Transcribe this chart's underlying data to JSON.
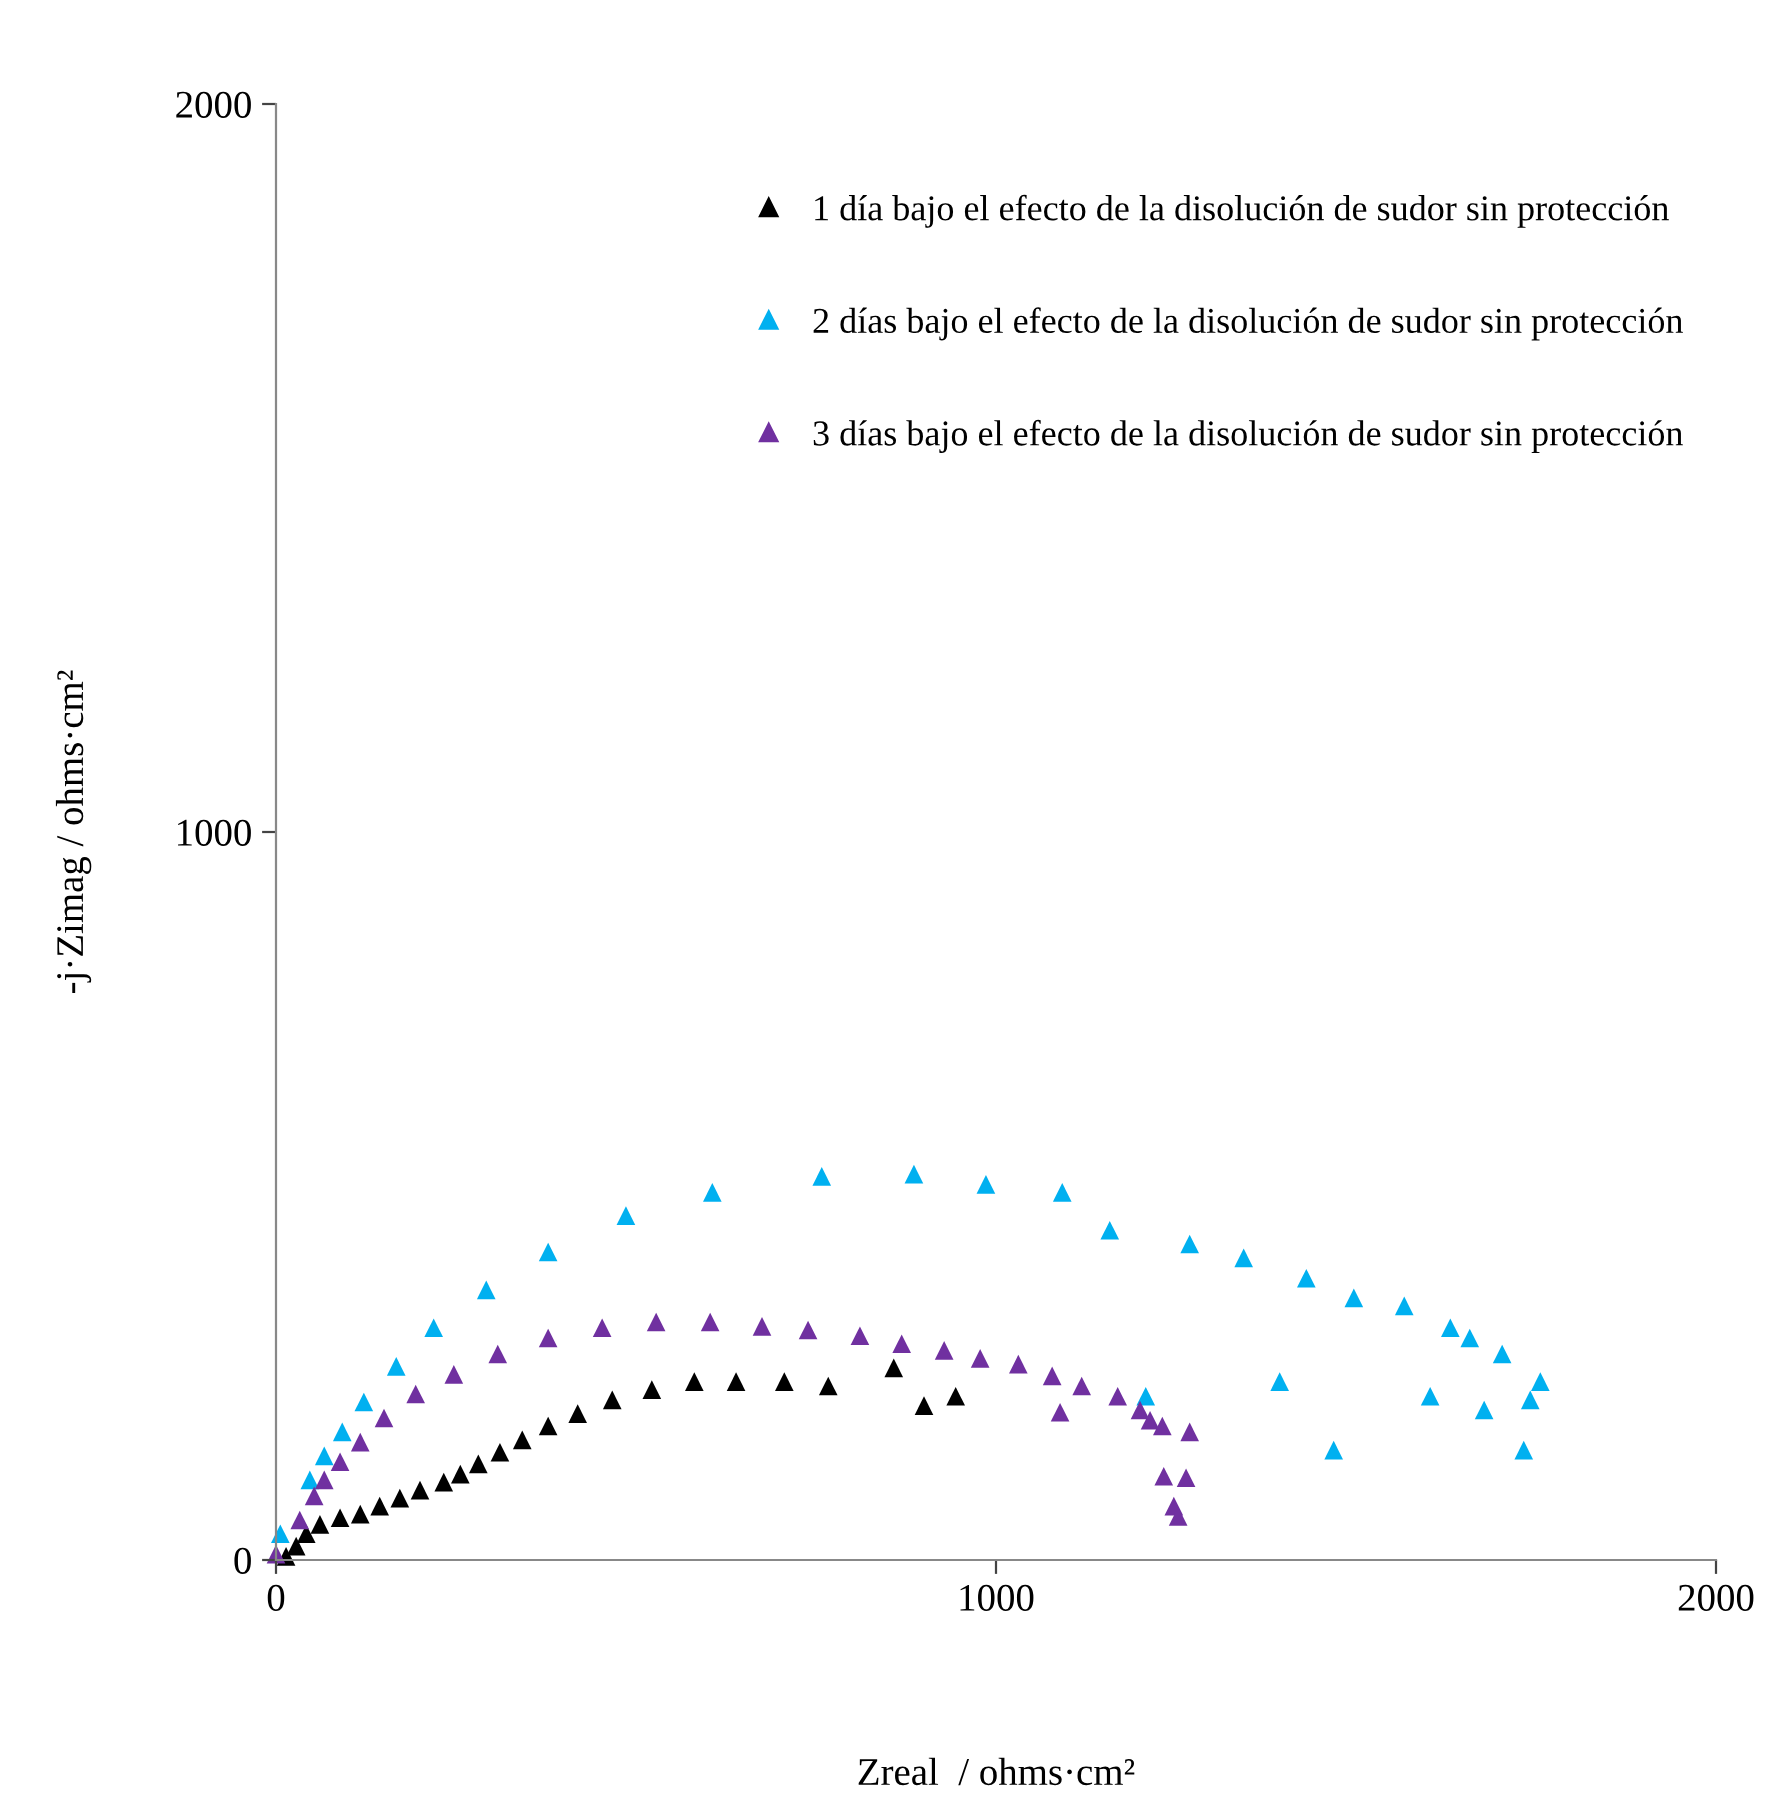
{
  "chart_data": {
    "type": "scatter",
    "xlabel": "Zreal  / ohms·cm²",
    "ylabel": "-j·Zimag / ohms·cm²",
    "marker": "triangle",
    "legend": "top right",
    "grid": false,
    "xlim": [
      0,
      2000
    ],
    "xticks": [
      0,
      1000,
      2000
    ],
    "ylim": [
      0,
      2000
    ],
    "yticks": [
      0,
      1000,
      2000
    ],
    "series": [
      {
        "name": "1 día bajo el efecto de la disolución de sudor sin protección",
        "color": "#000000",
        "x": [
          14,
          28,
          42,
          61,
          89,
          117,
          144,
          172,
          200,
          233,
          256,
          281,
          311,
          342,
          378,
          419,
          467,
          522,
          581,
          639,
          706,
          767,
          858,
          900,
          944
        ],
        "values": [
          5,
          19,
          36,
          49,
          58,
          63,
          74,
          85,
          96,
          107,
          118,
          132,
          148,
          165,
          184,
          201,
          220,
          234,
          245,
          245,
          245,
          239,
          264,
          212,
          225
        ]
      },
      {
        "name": "2 días bajo el efecto de la disolución de sudor sin protección",
        "color": "#00b0f0",
        "x": [
          6,
          47,
          67,
          92,
          122,
          167,
          219,
          292,
          378,
          486,
          606,
          758,
          886,
          986,
          1092,
          1158,
          1269,
          1344,
          1431,
          1497,
          1567,
          1631,
          1658,
          1703,
          1756,
          1742,
          1733,
          1678,
          1603,
          1469,
          1394,
          1208
        ],
        "values": [
          36,
          110,
          143,
          176,
          217,
          266,
          319,
          371,
          423,
          473,
          505,
          527,
          530,
          516,
          505,
          453,
          434,
          415,
          387,
          360,
          349,
          319,
          305,
          283,
          245,
          220,
          151,
          206,
          225,
          151,
          245,
          225
        ]
      },
      {
        "name": "3 días bajo el efecto de la disolución de sudor sin protección",
        "color": "#7030a0",
        "x": [
          0,
          33,
          53,
          67,
          89,
          117,
          150,
          194,
          247,
          308,
          378,
          453,
          528,
          603,
          675,
          739,
          811,
          869,
          928,
          978,
          1031,
          1078,
          1089,
          1119,
          1169,
          1200,
          1214,
          1231,
          1269,
          1264,
          1233,
          1247,
          1253
        ],
        "values": [
          8,
          55,
          88,
          110,
          135,
          162,
          195,
          228,
          255,
          283,
          305,
          319,
          327,
          327,
          321,
          316,
          308,
          297,
          288,
          277,
          269,
          253,
          203,
          239,
          225,
          206,
          192,
          184,
          176,
          113,
          115,
          74,
          60
        ]
      }
    ]
  }
}
